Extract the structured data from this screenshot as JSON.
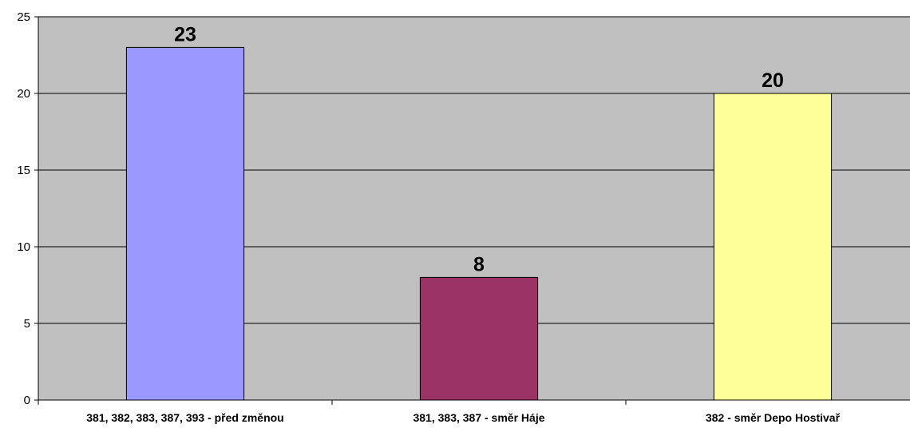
{
  "chart_data": {
    "type": "bar",
    "title": "",
    "xlabel": "",
    "ylabel": "",
    "categories": [
      "381, 382, 383, 387, 393 - před změnou",
      "381, 383, 387 - směr Háje",
      "382 - směr Depo Hostivař"
    ],
    "values": [
      23,
      8,
      20
    ],
    "data_labels": [
      "23",
      "8",
      "20"
    ],
    "bar_colors": [
      "#9999ff",
      "#993366",
      "#ffff99"
    ],
    "ylim": [
      0,
      25
    ],
    "yticks": [
      0,
      5,
      10,
      15,
      20,
      25
    ],
    "ytick_labels": [
      "0",
      "5",
      "10",
      "15",
      "20",
      "25"
    ],
    "grid": true,
    "legend": "none",
    "plot_background": "#c0c0c0"
  }
}
